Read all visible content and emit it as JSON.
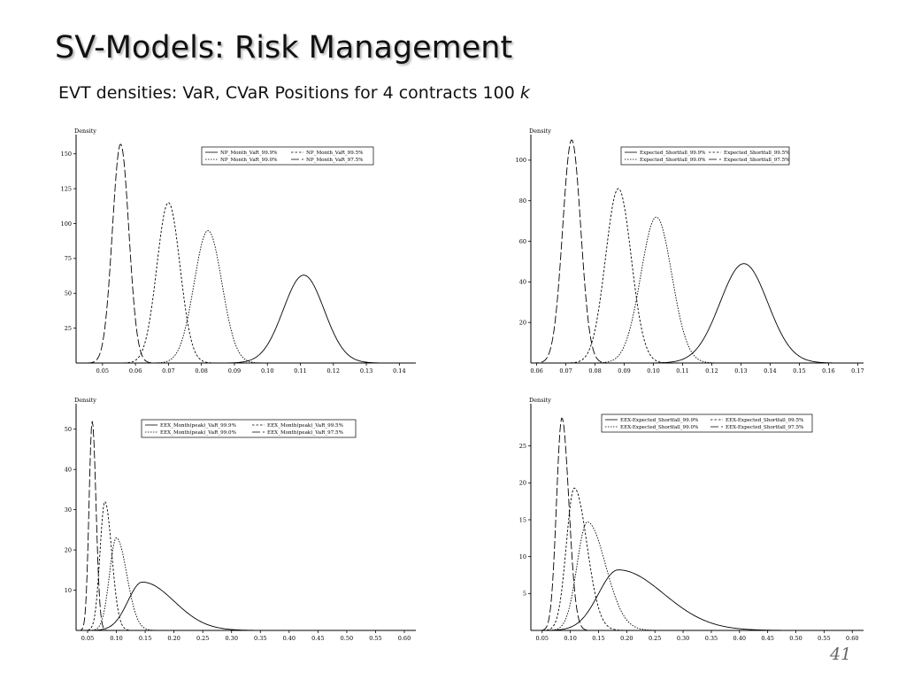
{
  "slide": {
    "title": "SV-Models: Risk Management",
    "subtitle": "EVT densities: VaR, CVaR Positions for 4 contracts 100",
    "subtitle_variable": "k",
    "page_number": "41"
  },
  "chart_data": [
    {
      "type": "line",
      "ylabel": "Density",
      "xlabel": "",
      "xlim": [
        0.042,
        0.145
      ],
      "ylim": [
        0,
        160
      ],
      "xticks": [
        0.05,
        0.06,
        0.07,
        0.08,
        0.09,
        0.1,
        0.11,
        0.12,
        0.13,
        0.14
      ],
      "yticks": [
        25,
        50,
        75,
        100,
        125,
        150
      ],
      "xtick_labels": [
        "0.05",
        "0.06",
        "0.07",
        "0.08",
        "0.09",
        "0.10",
        "0.11",
        "0.12",
        "0.13",
        "0.14"
      ],
      "ytick_labels": [
        "25",
        "50",
        "75",
        "100",
        "125",
        "150"
      ],
      "grid": false,
      "legend_position": "top-center",
      "series": [
        {
          "name": "NP_Month_VaR_99.9%",
          "style": "solid",
          "peak_x": 0.111,
          "peak_y": 63,
          "sd": 0.0062,
          "skew": 0
        },
        {
          "name": "NP_Month_VaR_99.5%",
          "style": "dashed",
          "peak_x": 0.07,
          "peak_y": 115,
          "sd": 0.0035,
          "skew": 0
        },
        {
          "name": "NP_Month_VaR_99.0%",
          "style": "dotted",
          "peak_x": 0.082,
          "peak_y": 95,
          "sd": 0.0042,
          "skew": 0
        },
        {
          "name": "NP_Month_VaR_97.5%",
          "style": "longdash",
          "peak_x": 0.0555,
          "peak_y": 157,
          "sd": 0.0025,
          "skew": 0
        }
      ]
    },
    {
      "type": "line",
      "ylabel": "Density",
      "xlabel": "",
      "xlim": [
        0.058,
        0.172
      ],
      "ylim": [
        0,
        110
      ],
      "xticks": [
        0.06,
        0.07,
        0.08,
        0.09,
        0.1,
        0.11,
        0.12,
        0.13,
        0.14,
        0.15,
        0.16,
        0.17
      ],
      "yticks": [
        20,
        40,
        60,
        80,
        100
      ],
      "xtick_labels": [
        "0.06",
        "0.07",
        "0.08",
        "0.09",
        "0.10",
        "0.11",
        "0.12",
        "0.13",
        "0.14",
        "0.15",
        "0.16",
        "0.17"
      ],
      "ytick_labels": [
        "20",
        "40",
        "60",
        "80",
        "100"
      ],
      "grid": false,
      "legend_position": "top-center",
      "series": [
        {
          "name": "Expected_Shortfall_99.9%",
          "style": "solid",
          "peak_x": 0.131,
          "peak_y": 49,
          "sd": 0.0082,
          "skew": 0
        },
        {
          "name": "Expected_Shortfall_99.5%",
          "style": "dashed",
          "peak_x": 0.088,
          "peak_y": 86,
          "sd": 0.0044,
          "skew": 0
        },
        {
          "name": "Expected_Shortfall_99.0%",
          "style": "dotted",
          "peak_x": 0.101,
          "peak_y": 72,
          "sd": 0.0053,
          "skew": 0
        },
        {
          "name": "Expected_Shortfall_97.5%",
          "style": "longdash",
          "peak_x": 0.072,
          "peak_y": 110,
          "sd": 0.0031,
          "skew": 0
        }
      ]
    },
    {
      "type": "line",
      "ylabel": "Density",
      "xlabel": "",
      "xlim": [
        0.03,
        0.62
      ],
      "ylim": [
        0,
        55
      ],
      "xticks": [
        0.05,
        0.1,
        0.15,
        0.2,
        0.25,
        0.3,
        0.35,
        0.4,
        0.45,
        0.5,
        0.55,
        0.6
      ],
      "yticks": [
        10,
        20,
        30,
        40,
        50
      ],
      "xtick_labels": [
        "0.05",
        "0.10",
        "0.15",
        "0.20",
        "0.25",
        "0.30",
        "0.35",
        "0.40",
        "0.45",
        "0.50",
        "0.55",
        "0.60"
      ],
      "ytick_labels": [
        "10",
        "20",
        "30",
        "40",
        "50"
      ],
      "grid": false,
      "legend_position": "top-center",
      "series": [
        {
          "name": "EEX_Month(peak)_VaR_99.9%",
          "style": "solid",
          "peak_x": 0.145,
          "peak_y": 12,
          "sd": 0.025,
          "skew": 2.2
        },
        {
          "name": "EEX_Month(peak)_VaR_99.5%",
          "style": "dashed",
          "peak_x": 0.08,
          "peak_y": 32,
          "sd": 0.0085,
          "skew": 1.4
        },
        {
          "name": "EEX_Month(peak)_VaR_99.0%",
          "style": "dotted",
          "peak_x": 0.1,
          "peak_y": 23,
          "sd": 0.012,
          "skew": 1.5
        },
        {
          "name": "EEX_Month(peak)_VaR_97.5%",
          "style": "longdash",
          "peak_x": 0.058,
          "peak_y": 52,
          "sd": 0.0055,
          "skew": 1.2
        }
      ]
    },
    {
      "type": "line",
      "ylabel": "Density",
      "xlabel": "",
      "xlim": [
        0.03,
        0.62
      ],
      "ylim": [
        0,
        30
      ],
      "xticks": [
        0.05,
        0.1,
        0.15,
        0.2,
        0.25,
        0.3,
        0.35,
        0.4,
        0.45,
        0.5,
        0.55,
        0.6
      ],
      "yticks": [
        5,
        10,
        15,
        20,
        25
      ],
      "xtick_labels": [
        "0.05",
        "0.10",
        "0.15",
        "0.20",
        "0.25",
        "0.30",
        "0.35",
        "0.40",
        "0.45",
        "0.50",
        "0.55",
        "0.60"
      ],
      "ytick_labels": [
        "5",
        "10",
        "15",
        "20",
        "25"
      ],
      "grid": false,
      "legend_position": "top-center",
      "series": [
        {
          "name": "EEX-Expected_Shortfall_99.9%",
          "style": "solid",
          "peak_x": 0.185,
          "peak_y": 8.2,
          "sd": 0.035,
          "skew": 2.3
        },
        {
          "name": "EEX-Expected_Shortfall_99.5%",
          "style": "dashed",
          "peak_x": 0.107,
          "peak_y": 19.3,
          "sd": 0.014,
          "skew": 1.6
        },
        {
          "name": "EEX-Expected_Shortfall_99.0%",
          "style": "dotted",
          "peak_x": 0.13,
          "peak_y": 14.7,
          "sd": 0.018,
          "skew": 1.8
        },
        {
          "name": "EEX-Expected_Shortfall_97.5%",
          "style": "longdash",
          "peak_x": 0.085,
          "peak_y": 28.8,
          "sd": 0.0095,
          "skew": 1.3
        }
      ]
    }
  ]
}
